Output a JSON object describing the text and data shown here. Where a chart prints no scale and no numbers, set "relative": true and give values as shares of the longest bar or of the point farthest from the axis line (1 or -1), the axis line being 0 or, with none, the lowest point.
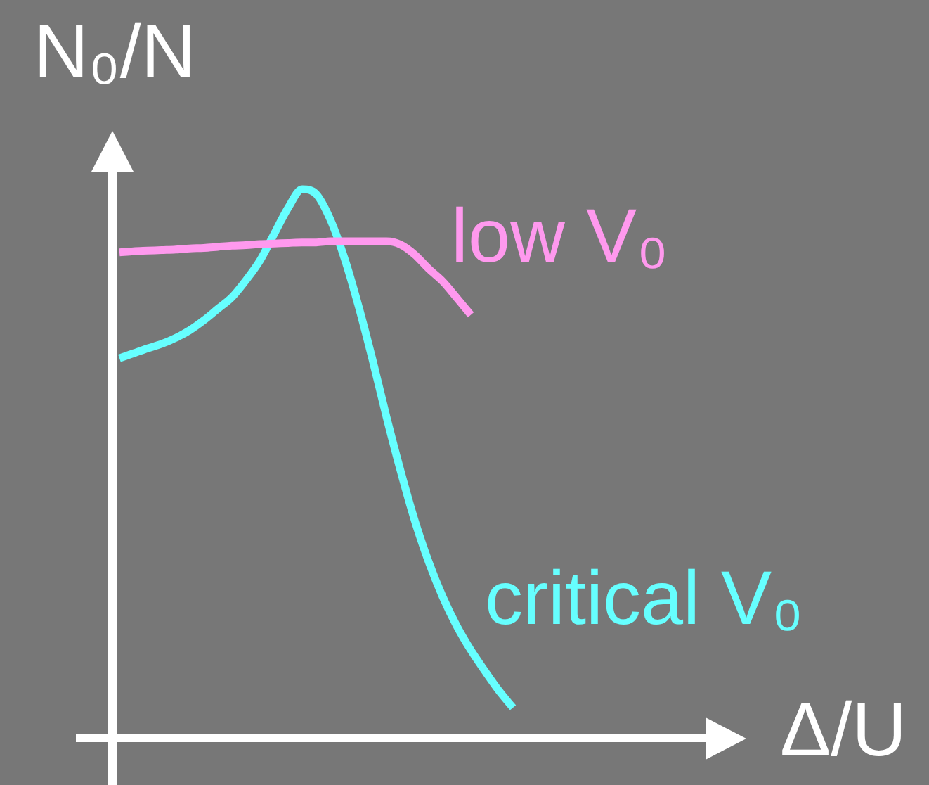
{
  "chart_data": {
    "type": "line",
    "ylabel": "N₀/N",
    "xlabel": "Δ/U",
    "relative": true,
    "tick_labels": false,
    "categories": [
      null,
      null,
      null,
      null,
      null,
      null,
      null,
      null,
      null,
      null,
      null,
      null,
      null,
      null,
      null,
      null,
      null,
      null,
      null,
      null,
      null,
      null,
      null,
      null,
      null,
      null,
      null,
      null,
      null,
      null,
      null,
      null,
      null,
      null,
      null,
      null,
      null,
      null,
      null,
      null,
      null,
      null,
      null,
      null,
      null
    ],
    "series": [
      {
        "name": "low V₀",
        "color": "#ff99ee",
        "values": [
          0.885,
          0.887,
          0.888,
          0.889,
          0.89,
          0.892,
          0.893,
          0.895,
          0.897,
          0.898,
          0.9,
          0.901,
          0.902,
          0.903,
          0.903,
          0.905,
          0.905,
          0.905,
          0.905,
          0.905,
          0.899,
          0.881,
          0.855,
          0.832,
          0.802,
          0.771,
          null,
          null,
          null,
          null,
          null,
          null,
          null,
          null,
          null,
          null,
          null,
          null,
          null,
          null,
          null,
          null,
          null,
          null,
          null
        ]
      },
      {
        "name": "critical V₀",
        "color": "#66ffff",
        "values": [
          0.692,
          0.701,
          0.71,
          0.718,
          0.729,
          0.743,
          0.761,
          0.782,
          0.803,
          0.834,
          0.87,
          0.918,
          0.966,
          1,
          0.991,
          0.945,
          0.875,
          0.788,
          0.69,
          0.585,
          0.487,
          0.397,
          0.321,
          0.257,
          0.204,
          0.16,
          0.122,
          0.086,
          0.055,
          null,
          null,
          null,
          null,
          null,
          null,
          null,
          null,
          null,
          null,
          null,
          null,
          null,
          null,
          null,
          null
        ]
      }
    ]
  }
}
